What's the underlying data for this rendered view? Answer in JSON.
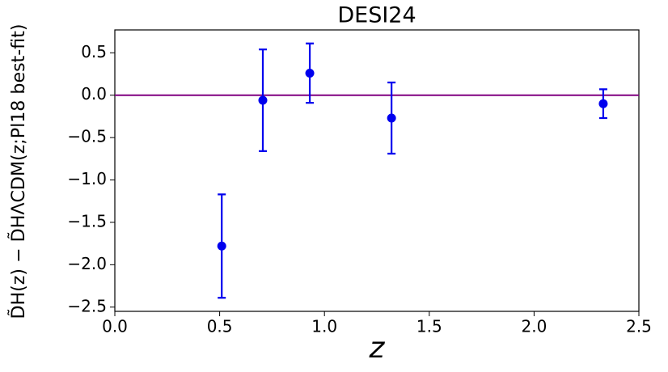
{
  "chart_data": {
    "type": "scatter",
    "title": "DESI24",
    "x_label": "z",
    "y_label": "D̃H(z) − D̃HΛCDM(z;Pl18 best-fit)",
    "x": [
      0.51,
      0.706,
      0.93,
      1.32,
      2.33
    ],
    "values": [
      -1.78,
      -0.06,
      0.26,
      -0.27,
      -0.1
    ],
    "errors": [
      0.61,
      0.6,
      0.35,
      0.42,
      0.17
    ],
    "color": "#0000ee",
    "hline": 0,
    "hline_color": "#800080",
    "xlim": [
      0,
      2.5
    ],
    "ylim": [
      -2.55,
      0.77
    ],
    "xticks": [
      {
        "value": 0,
        "label": "0.0"
      },
      0.5,
      {
        "value": 1,
        "label": "1.0"
      },
      1.5,
      {
        "value": 2,
        "label": "2.0"
      },
      2.5
    ],
    "yticks": [
      0.5,
      {
        "value": 0,
        "label": "0.0"
      },
      {
        "value": -0.5,
        "label": "−0.5"
      },
      {
        "value": -1,
        "label": "−1.0"
      },
      {
        "value": -1.5,
        "label": "−1.5"
      },
      {
        "value": -2,
        "label": "−2.0"
      },
      {
        "value": -2.5,
        "label": "−2.5"
      }
    ]
  }
}
